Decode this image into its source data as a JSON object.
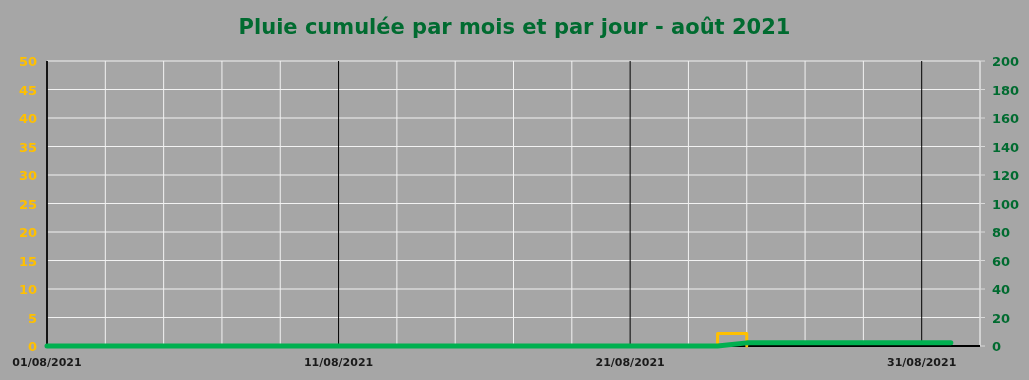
{
  "chart_data": {
    "type": "step",
    "title": "Pluie cumulée par mois et par jour - août 2021",
    "xlim": [
      "2021-08-01",
      "2021-09-02"
    ],
    "xticks": [
      {
        "value": "2021-08-01",
        "label": "01/08/2021"
      },
      {
        "value": "2021-08-03",
        "label": null
      },
      {
        "value": "2021-08-05",
        "label": null
      },
      {
        "value": "2021-08-07",
        "label": null
      },
      {
        "value": "2021-08-09",
        "label": null
      },
      {
        "value": "2021-08-11",
        "label": "11/08/2021"
      },
      {
        "value": "2021-08-13",
        "label": null
      },
      {
        "value": "2021-08-15",
        "label": null
      },
      {
        "value": "2021-08-17",
        "label": null
      },
      {
        "value": "2021-08-19",
        "label": null
      },
      {
        "value": "2021-08-21",
        "label": "21/08/2021"
      },
      {
        "value": "2021-08-23",
        "label": null
      },
      {
        "value": "2021-08-25",
        "label": null
      },
      {
        "value": "2021-08-27",
        "label": null
      },
      {
        "value": "2021-08-29",
        "label": null
      },
      {
        "value": "2021-08-31",
        "label": "31/08/2021"
      },
      {
        "value": "2021-09-02",
        "label": null
      }
    ],
    "ylim": [
      0,
      50
    ],
    "yticks": [
      0,
      5,
      10,
      15,
      20,
      25,
      30,
      35,
      40,
      45,
      50
    ],
    "y2lim": [
      0,
      200
    ],
    "y2ticks": [
      0,
      20,
      40,
      60,
      80,
      100,
      120,
      140,
      160,
      180,
      200
    ],
    "grid": true,
    "series": [
      {
        "color": "#ffc000",
        "x": [
          "2021-08-23",
          "2021-08-24",
          "2021-08-25"
        ],
        "values": [
          0,
          2.2,
          0
        ]
      },
      {
        "type": "line",
        "color": "#00b050",
        "axis": "y2",
        "x": [
          "2021-08-01",
          "2021-08-24",
          "2021-08-25",
          "2021-09-01"
        ],
        "values": [
          0,
          0,
          2.2,
          2.2
        ]
      }
    ]
  }
}
